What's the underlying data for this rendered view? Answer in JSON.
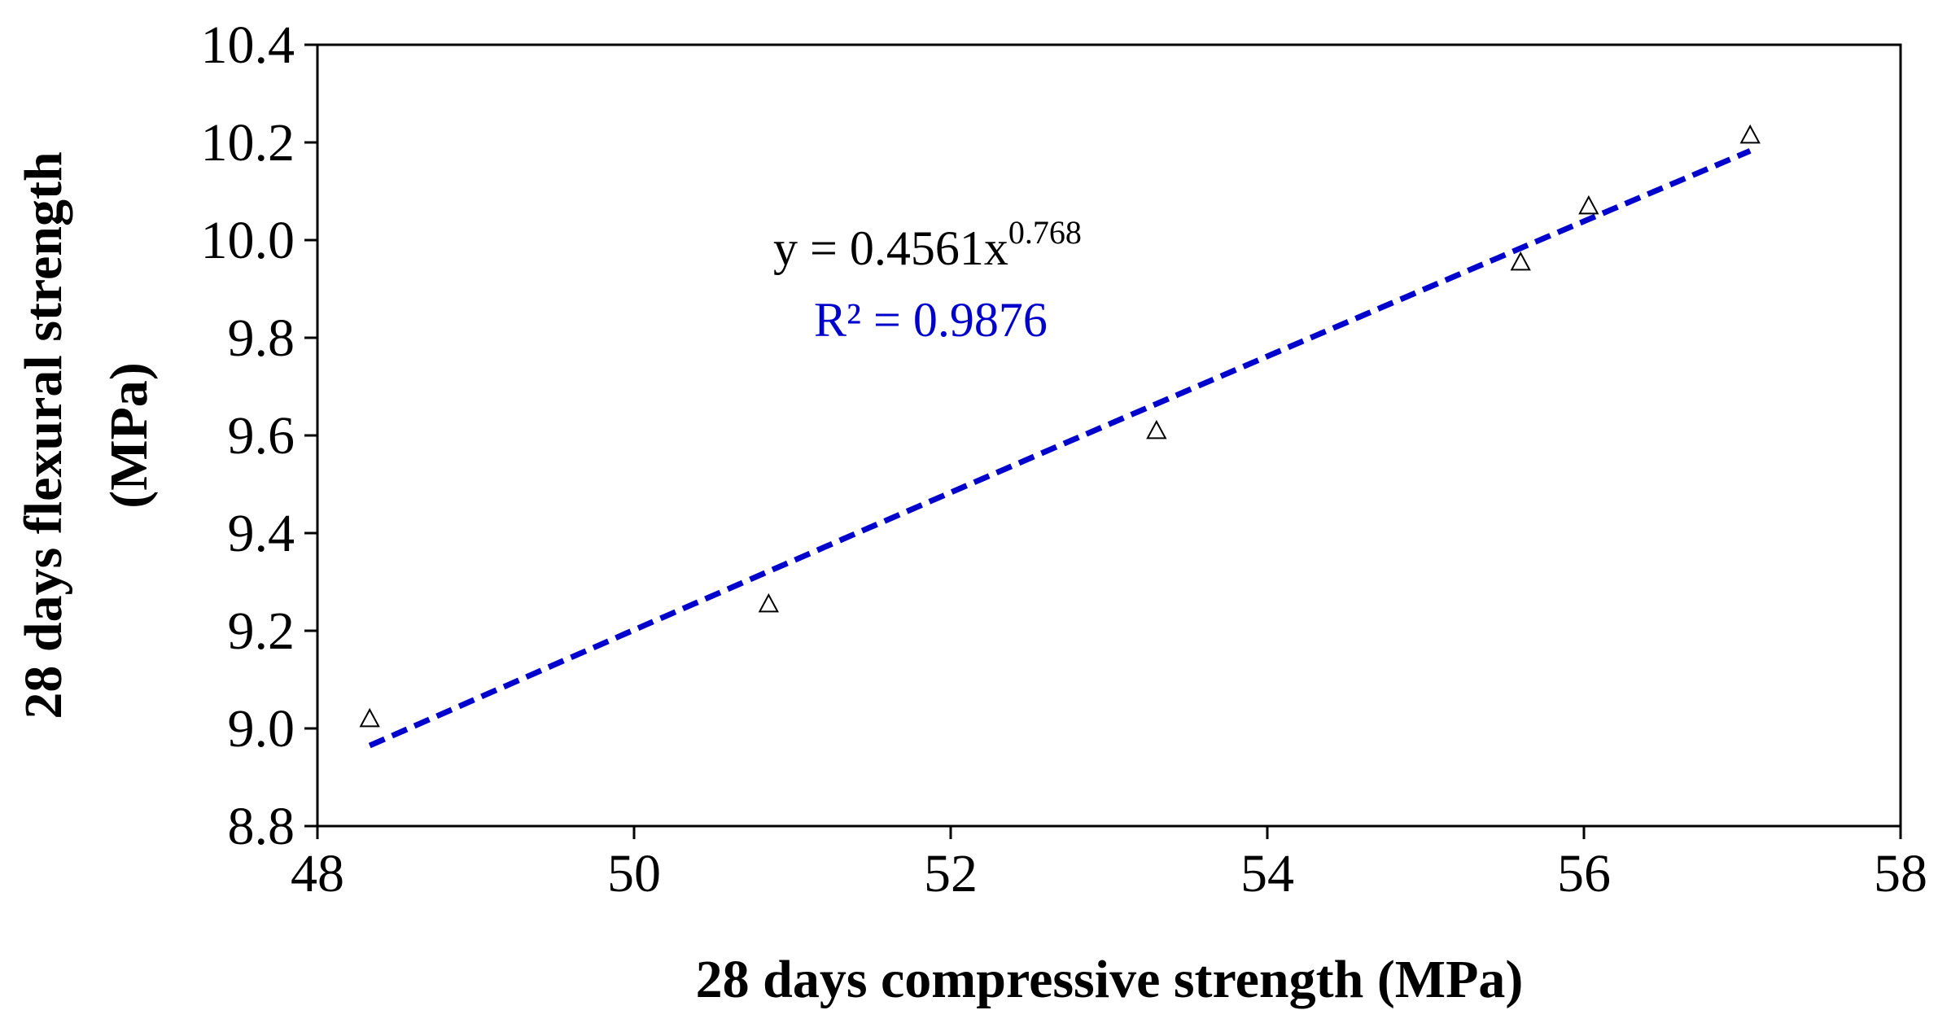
{
  "chart_data": {
    "type": "scatter",
    "title": "",
    "xlabel": "28 days compressive strength (MPa)",
    "ylabel_line1": "28 days flexural strength",
    "ylabel_line2": "(MPa)",
    "xlim": [
      48,
      58
    ],
    "ylim": [
      8.8,
      10.4
    ],
    "xticks": [
      "48",
      "50",
      "52",
      "54",
      "56",
      "58"
    ],
    "xtick_values": [
      48,
      50,
      52,
      54,
      56,
      58
    ],
    "yticks": [
      "10.4",
      "10.2",
      "10.0",
      "9.8",
      "9.6",
      "9.4",
      "9.2",
      "9.0",
      "8.8"
    ],
    "ytick_values": [
      10.4,
      10.2,
      10.0,
      9.8,
      9.6,
      9.4,
      9.2,
      9.0,
      8.8
    ],
    "grid": false,
    "series": [
      {
        "name": "Data",
        "marker": "open-triangle",
        "color": "#000000",
        "x": [
          48.33,
          50.85,
          53.3,
          55.6,
          56.03,
          57.05
        ],
        "y": [
          9.02,
          9.255,
          9.61,
          9.955,
          10.07,
          10.215
        ]
      }
    ],
    "trendline": {
      "type": "power",
      "coefficient": 0.4561,
      "exponent": 0.768,
      "x_range": [
        48.33,
        57.05
      ],
      "color": "#0000cc",
      "style": "dashed"
    },
    "annotations": {
      "equation_main": "y = 0.4561x",
      "equation_exponent": "0.768",
      "r_squared": "R² = 0.9876",
      "equation_color": "#000000",
      "r_squared_color": "#0000cc"
    }
  }
}
